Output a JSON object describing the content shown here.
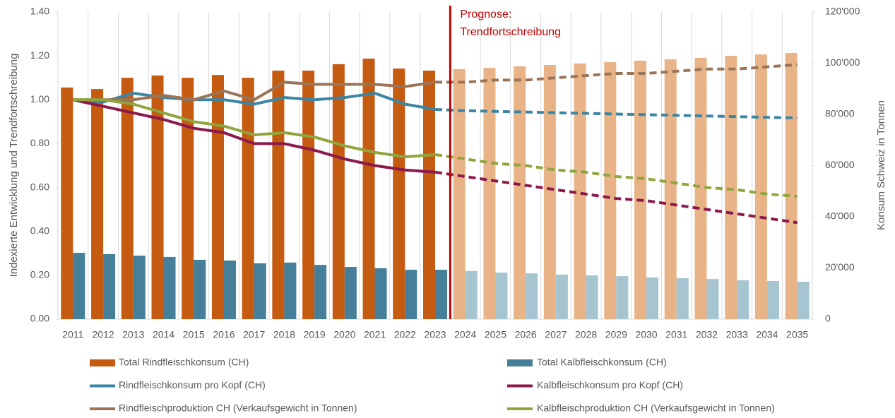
{
  "chart_data": {
    "type": "bar_line",
    "y_label": "Indexierte Entwicklung und Trendfortschreibung",
    "y2_label": "Konsum Schweiz in Tonnen",
    "annotation": [
      "Prognose:",
      "Trendfortschreibung"
    ],
    "annotation_color": "#c00000",
    "forecast_start": "2024",
    "categories": [
      "2011",
      "2012",
      "2013",
      "2014",
      "2015",
      "2016",
      "2017",
      "2018",
      "2019",
      "2020",
      "2021",
      "2022",
      "2023",
      "2024",
      "2025",
      "2026",
      "2027",
      "2028",
      "2029",
      "2030",
      "2031",
      "2032",
      "2033",
      "2034",
      "2035"
    ],
    "ylim": [
      0,
      1.4
    ],
    "yticks": [
      {
        "value": 0,
        "label": "0.00"
      },
      {
        "value": 0.2,
        "label": "0.20"
      },
      {
        "value": 0.4,
        "label": "0.40"
      },
      {
        "value": 0.6,
        "label": "0.60"
      },
      {
        "value": 0.8,
        "label": "0.80"
      },
      {
        "value": 1,
        "label": "1.00"
      },
      {
        "value": 1.2,
        "label": "1.20"
      },
      {
        "value": 1.4,
        "label": "1.40"
      }
    ],
    "y2lim": [
      0,
      120000
    ],
    "y2ticks": [
      0,
      {
        "value": 20000,
        "label": "20'000"
      },
      {
        "value": 40000,
        "label": "40'000"
      },
      {
        "value": 60000,
        "label": "60'000"
      },
      {
        "value": 80000,
        "label": "80'000"
      },
      {
        "value": 100000,
        "label": "100'000"
      },
      {
        "value": 120000,
        "label": "120'000"
      }
    ],
    "series": [
      {
        "name": "Total Rindfleischkonsum (CH)",
        "kind": "bar",
        "axis": "y2",
        "color": "#c55a11",
        "forecast_color": "#e8b487",
        "values": [
          90500,
          89900,
          94300,
          95200,
          94300,
          95400,
          94300,
          97100,
          97100,
          99600,
          101800,
          97900,
          97100,
          97700,
          98200,
          98800,
          99300,
          99900,
          100400,
          101000,
          101500,
          102100,
          102900,
          103400,
          104000
        ]
      },
      {
        "name": "Total Kalbfleischkonsum (CH)",
        "kind": "bar",
        "axis": "y2",
        "color": "#457f99",
        "forecast_color": "#a6c5d1",
        "values": [
          25900,
          25400,
          24800,
          24300,
          23200,
          22900,
          21800,
          22100,
          21200,
          20400,
          19900,
          19300,
          19300,
          18800,
          18200,
          17900,
          17400,
          17100,
          16800,
          16300,
          16000,
          15700,
          15200,
          14900,
          14600
        ]
      },
      {
        "name": "Rindfleischkonsum pro Kopf (CH)",
        "kind": "line",
        "axis": "y",
        "color": "#3d85a5",
        "values": [
          1.0,
          0.99,
          1.03,
          1.01,
          1.0,
          1.0,
          0.98,
          1.01,
          1.0,
          1.01,
          1.03,
          0.98,
          0.956,
          0.95,
          0.947,
          0.944,
          0.941,
          0.938,
          0.935,
          0.932,
          0.929,
          0.926,
          0.923,
          0.92,
          0.917
        ]
      },
      {
        "name": "Kalbfleischkonsum pro Kopf (CH)",
        "kind": "line",
        "axis": "y",
        "color": "#8b1a4b",
        "values": [
          1.0,
          0.97,
          0.94,
          0.91,
          0.87,
          0.85,
          0.8,
          0.8,
          0.77,
          0.73,
          0.7,
          0.68,
          0.67,
          0.65,
          0.63,
          0.61,
          0.59,
          0.57,
          0.55,
          0.54,
          0.52,
          0.5,
          0.48,
          0.46,
          0.44
        ]
      },
      {
        "name": "Rindfleischproduktion CH (Verkaufsgewicht in Tonnen)",
        "kind": "line",
        "axis": "y",
        "color": "#9b7457",
        "values": [
          1.0,
          1.0,
          1.0,
          1.02,
          1.0,
          1.04,
          1.0,
          1.08,
          1.07,
          1.07,
          1.07,
          1.06,
          1.08,
          1.08,
          1.09,
          1.09,
          1.1,
          1.11,
          1.12,
          1.12,
          1.13,
          1.14,
          1.14,
          1.15,
          1.16
        ]
      },
      {
        "name": "Kalbfleischproduktion CH (Verkaufsgewicht in Tonnen)",
        "kind": "line",
        "axis": "y",
        "color": "#8fa53d",
        "values": [
          1.0,
          1.0,
          0.98,
          0.94,
          0.9,
          0.88,
          0.84,
          0.85,
          0.83,
          0.79,
          0.76,
          0.74,
          0.75,
          0.73,
          0.71,
          0.7,
          0.68,
          0.67,
          0.65,
          0.64,
          0.62,
          0.6,
          0.59,
          0.57,
          0.56
        ]
      }
    ]
  }
}
